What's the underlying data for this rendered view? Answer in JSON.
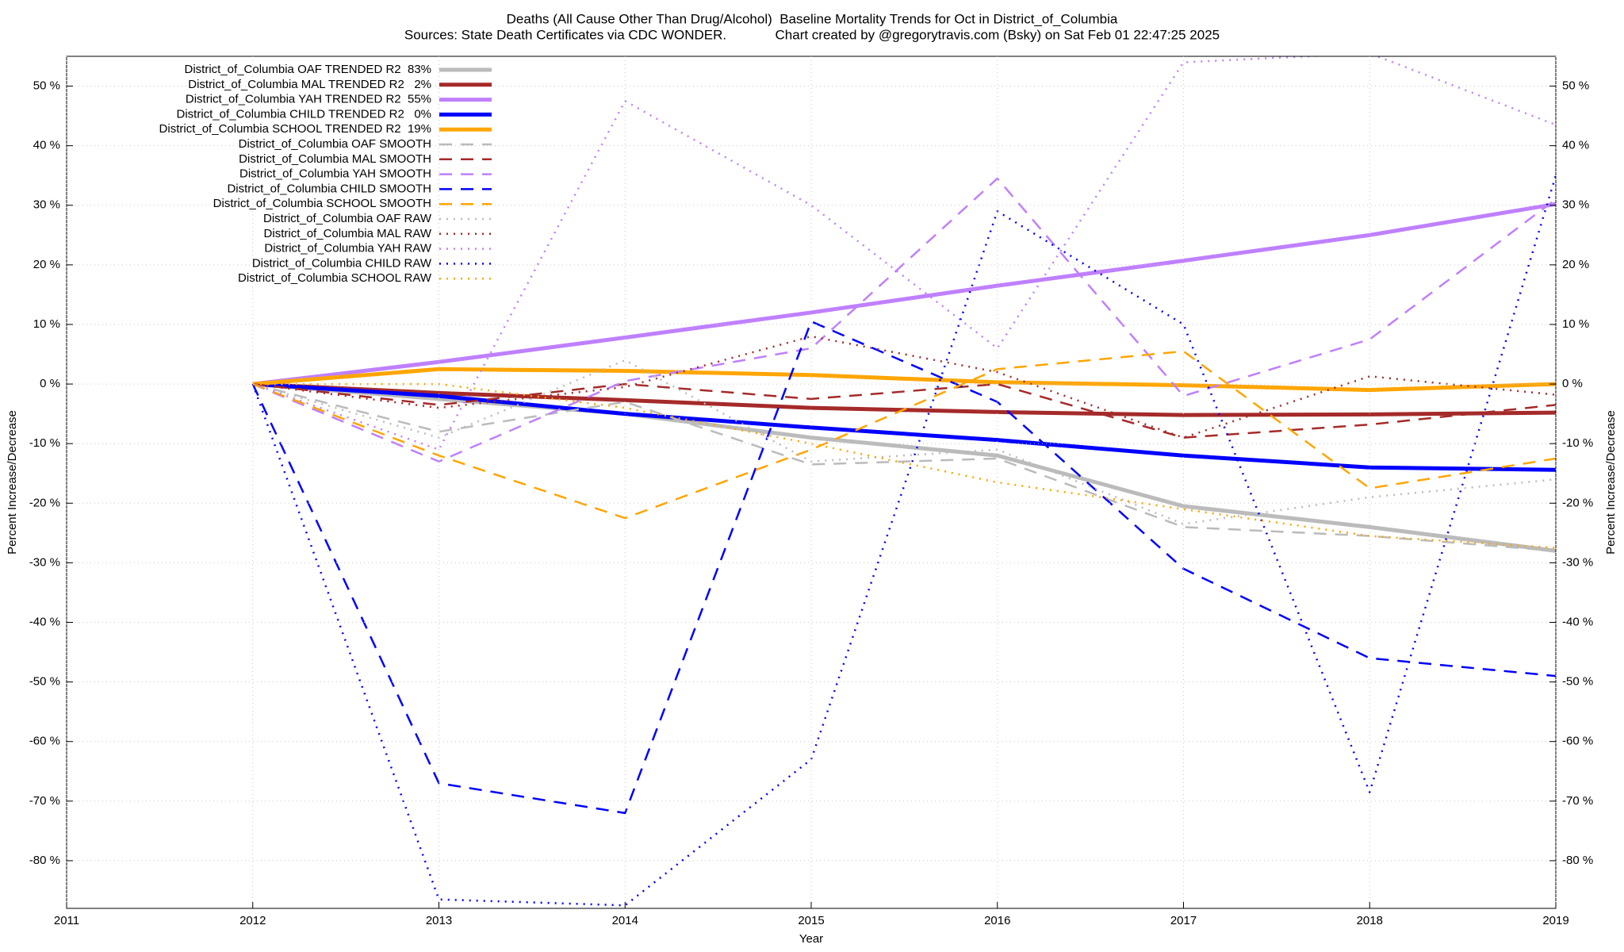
{
  "chart_data": {
    "type": "line",
    "title": "Deaths (All Cause Other Than Drug/Alcohol)  Baseline Mortality Trends for Oct in District_of_Columbia",
    "subtitle": "Sources: State Death Certificates via CDC WONDER.             Chart created by @gregorytravis.com (Bsky) on Sat Feb 01 22:47:25 2025",
    "x_label": "Year",
    "y_label": "Percent Increase/Decrease",
    "y2_label": "Percent Increase/Decrease",
    "x": [
      2012,
      2013,
      2014,
      2015,
      2016,
      2017,
      2018,
      2019
    ],
    "xlim": [
      2011,
      2019
    ],
    "xticks": [
      2011,
      2012,
      2013,
      2014,
      2015,
      2016,
      2017,
      2018,
      2019
    ],
    "ylim": [
      -88,
      55
    ],
    "yticks": [
      {
        "value": -80,
        "label": "-80 %"
      },
      {
        "value": -70,
        "label": "-70 %"
      },
      {
        "value": -60,
        "label": "-60 %"
      },
      {
        "value": -50,
        "label": "-50 %"
      },
      {
        "value": -40,
        "label": "-40 %"
      },
      {
        "value": -30,
        "label": "-30 %"
      },
      {
        "value": -20,
        "label": "-20 %"
      },
      {
        "value": -10,
        "label": "-10 %"
      },
      {
        "value": 0,
        "label": "0 %"
      },
      {
        "value": 10,
        "label": "10 %"
      },
      {
        "value": 20,
        "label": "20 %"
      },
      {
        "value": 30,
        "label": "30 %"
      },
      {
        "value": 40,
        "label": "40 %"
      },
      {
        "value": 50,
        "label": "50 %"
      }
    ],
    "y2lim": [
      -88,
      55
    ],
    "grid": true,
    "legend": "top-left",
    "series": [
      {
        "name": "District_of_Columbia OAF TRENDED R2  83%",
        "color": "#bbbbbb",
        "style": "solid",
        "values": [
          0,
          -2.5,
          -5,
          -9,
          -12,
          -20.5,
          -24,
          -28
        ]
      },
      {
        "name": "District_of_Columbia MAL TRENDED R2   2%",
        "color": "#a52a2a",
        "style": "solid",
        "values": [
          0,
          -1.5,
          -2.7,
          -4,
          -4.7,
          -5.2,
          -5.1,
          -4.8
        ]
      },
      {
        "name": "District_of_Columbia YAH TRENDED R2  55%",
        "color": "#bf80ff",
        "style": "solid",
        "values": [
          0,
          3.7,
          7.8,
          12,
          16.5,
          20.7,
          25,
          30.2
        ]
      },
      {
        "name": "District_of_Columbia CHILD TRENDED R2   0%",
        "color": "#0000ff",
        "style": "solid",
        "values": [
          0,
          -2,
          -5,
          -7.3,
          -9.4,
          -12,
          -14,
          -14.4
        ]
      },
      {
        "name": "District_of_Columbia SCHOOL TRENDED R2  19%",
        "color": "#ffa500",
        "style": "solid",
        "values": [
          0,
          2.5,
          2.2,
          1.5,
          0.3,
          -0.2,
          -1,
          0
        ]
      },
      {
        "name": "District_of_Columbia OAF SMOOTH",
        "color": "#bbbbbb",
        "style": "dashed",
        "values": [
          0,
          -8,
          -3,
          -13.5,
          -12.5,
          -24,
          -25.5,
          -28
        ]
      },
      {
        "name": "District_of_Columbia MAL SMOOTH",
        "color": "#a52a2a",
        "style": "dashed",
        "values": [
          0,
          -3.5,
          0,
          -2.5,
          0,
          -9,
          -6.8,
          -3.5
        ]
      },
      {
        "name": "District_of_Columbia YAH SMOOTH",
        "color": "#bf80ff",
        "style": "dashed",
        "values": [
          0,
          -13,
          0.5,
          6,
          34.5,
          -2,
          7.5,
          31
        ]
      },
      {
        "name": "District_of_Columbia CHILD SMOOTH",
        "color": "#0000ff",
        "style": "dashed",
        "values": [
          0,
          -67,
          -72,
          10.5,
          -3,
          -31,
          -46,
          -49
        ]
      },
      {
        "name": "District_of_Columbia SCHOOL SMOOTH",
        "color": "#ffa500",
        "style": "dashed",
        "values": [
          0,
          -12,
          -22.5,
          -11,
          2.5,
          5.5,
          -17.5,
          -12.5
        ]
      },
      {
        "name": "District_of_Columbia OAF RAW",
        "color": "#bbbbbb",
        "style": "dotted",
        "values": [
          0,
          -9,
          4,
          -13,
          -11,
          -23.5,
          -19,
          -16
        ]
      },
      {
        "name": "District_of_Columbia MAL RAW",
        "color": "#a52a2a",
        "style": "dotted",
        "values": [
          0,
          -4,
          -0.5,
          8,
          2,
          -9,
          1.3,
          -1.8
        ]
      },
      {
        "name": "District_of_Columbia YAH RAW",
        "color": "#bf80ff",
        "style": "dotted",
        "values": [
          0,
          -11,
          47.5,
          30,
          6,
          54,
          55.5,
          43.5
        ]
      },
      {
        "name": "District_of_Columbia CHILD RAW",
        "color": "#0000ff",
        "style": "dotted",
        "values": [
          0,
          -86.5,
          -87.5,
          -63,
          29,
          10,
          -68.5,
          35
        ]
      },
      {
        "name": "District_of_Columbia SCHOOL RAW",
        "color": "#ffa500",
        "style": "dotted",
        "values": [
          0,
          0,
          -4,
          -10,
          -16.5,
          -21,
          -25.5,
          -27.5
        ]
      }
    ]
  }
}
